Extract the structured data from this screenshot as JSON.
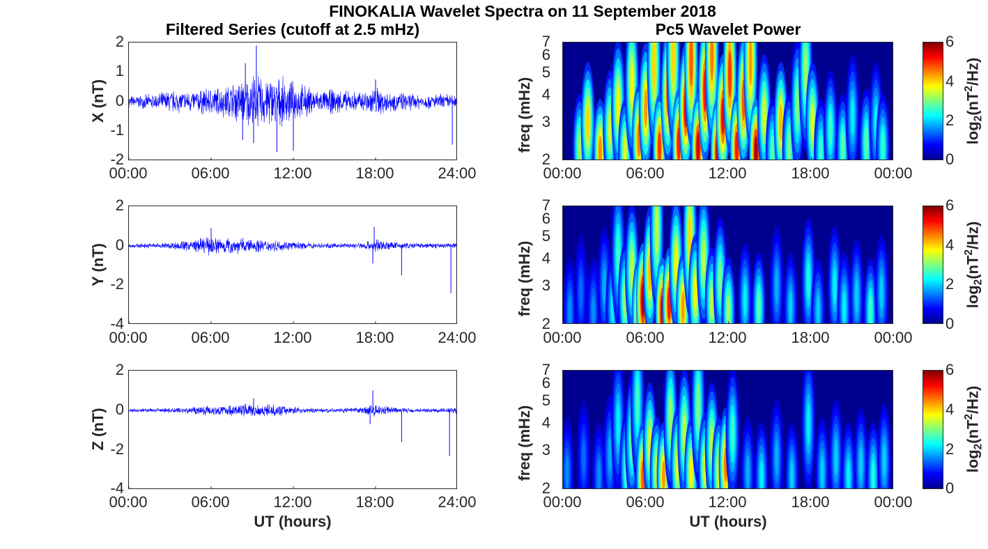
{
  "chart_data": [
    {
      "type": "line",
      "title": "Filtered Series (cutoff at 2.5 mHz)",
      "ylabel": "X (nT)",
      "xlabel": "",
      "x_ticks": [
        "00:00",
        "06:00",
        "12:00",
        "18:00",
        "24:00"
      ],
      "y_ticks": [
        "-2",
        "-1",
        "0",
        "1",
        "2"
      ],
      "ylim": [
        -2,
        2
      ],
      "xlim_hours": [
        0,
        24
      ],
      "color": "#0000ff",
      "envelope": {
        "hours": [
          0,
          1,
          2,
          3,
          4,
          5,
          6,
          7,
          8,
          9,
          10,
          11,
          12,
          13,
          14,
          15,
          16,
          17,
          18,
          19,
          20,
          21,
          22,
          23,
          24
        ],
        "amplitude_nT": [
          0.22,
          0.25,
          0.3,
          0.45,
          0.4,
          0.45,
          0.55,
          0.6,
          0.85,
          1.0,
          1.0,
          0.9,
          0.75,
          0.6,
          0.4,
          0.5,
          0.4,
          0.4,
          0.6,
          0.4,
          0.35,
          0.3,
          0.28,
          0.3,
          0.3
        ]
      },
      "spikes": [
        {
          "hour": 8.3,
          "value": -1.3
        },
        {
          "hour": 9.3,
          "value": 1.9
        },
        {
          "hour": 9.1,
          "value": -1.4
        },
        {
          "hour": 10.8,
          "value": -1.7
        },
        {
          "hour": 12.0,
          "value": -1.65
        },
        {
          "hour": 8.5,
          "value": 1.3
        },
        {
          "hour": 23.6,
          "value": -1.45
        },
        {
          "hour": 18.0,
          "value": 0.75
        }
      ]
    },
    {
      "type": "line",
      "title": "",
      "ylabel": "Y (nT)",
      "xlabel": "",
      "x_ticks": [
        "00:00",
        "06:00",
        "12:00",
        "18:00",
        "24:00"
      ],
      "y_ticks": [
        "-4",
        "-2",
        "0",
        "2"
      ],
      "ylim": [
        -4,
        2
      ],
      "xlim_hours": [
        0,
        24
      ],
      "color": "#0000ff",
      "envelope": {
        "hours": [
          0,
          1,
          2,
          3,
          4,
          5,
          6,
          7,
          8,
          9,
          10,
          11,
          12,
          13,
          14,
          15,
          16,
          17,
          18,
          19,
          20,
          21,
          22,
          23,
          24
        ],
        "amplitude_nT": [
          0.12,
          0.14,
          0.16,
          0.2,
          0.3,
          0.4,
          0.55,
          0.5,
          0.45,
          0.4,
          0.35,
          0.3,
          0.22,
          0.18,
          0.15,
          0.14,
          0.15,
          0.2,
          0.4,
          0.25,
          0.18,
          0.15,
          0.15,
          0.18,
          0.2
        ]
      },
      "spikes": [
        {
          "hour": 17.9,
          "value": 0.95
        },
        {
          "hour": 17.8,
          "value": -0.9
        },
        {
          "hour": 19.9,
          "value": -1.5
        },
        {
          "hour": 23.5,
          "value": -2.4
        },
        {
          "hour": 6.0,
          "value": 0.9
        }
      ]
    },
    {
      "type": "line",
      "title": "",
      "ylabel": "Z (nT)",
      "xlabel": "UT (hours)",
      "x_ticks": [
        "00:00",
        "06:00",
        "12:00",
        "18:00",
        "24:00"
      ],
      "y_ticks": [
        "-4",
        "-2",
        "0",
        "2"
      ],
      "ylim": [
        -4,
        2
      ],
      "xlim_hours": [
        0,
        24
      ],
      "color": "#0000ff",
      "envelope": {
        "hours": [
          0,
          1,
          2,
          3,
          4,
          5,
          6,
          7,
          8,
          9,
          10,
          11,
          12,
          13,
          14,
          15,
          16,
          17,
          18,
          19,
          20,
          21,
          22,
          23,
          24
        ],
        "amplitude_nT": [
          0.1,
          0.1,
          0.12,
          0.14,
          0.2,
          0.25,
          0.3,
          0.3,
          0.35,
          0.4,
          0.35,
          0.3,
          0.22,
          0.15,
          0.12,
          0.12,
          0.14,
          0.18,
          0.4,
          0.2,
          0.15,
          0.12,
          0.12,
          0.15,
          0.2
        ]
      },
      "spikes": [
        {
          "hour": 17.8,
          "value": 1.0
        },
        {
          "hour": 17.6,
          "value": -0.7
        },
        {
          "hour": 19.9,
          "value": -1.6
        },
        {
          "hour": 23.4,
          "value": -2.3
        },
        {
          "hour": 9.1,
          "value": 0.6
        }
      ]
    },
    {
      "type": "heatmap",
      "title": "Pc5 Wavelet Power",
      "ylabel": "freq (mHz)",
      "xlabel": "",
      "x_ticks": [
        "00:00",
        "06:00",
        "12:00",
        "18:00",
        "00:00"
      ],
      "y_ticks": [
        "2",
        "3",
        "4",
        "5",
        "6",
        "7"
      ],
      "ylim": [
        2,
        7
      ],
      "y_scale": "log",
      "xlim_hours": [
        0,
        24
      ],
      "colormap": "jet",
      "colorbar": {
        "label": "log2(nT^2/Hz)",
        "ticks": [
          "0",
          "2",
          "4",
          "6"
        ],
        "range": [
          0,
          6
        ]
      },
      "bursts": [
        [
          1.2,
          2.3,
          3.2
        ],
        [
          1.8,
          3.0,
          4.0
        ],
        [
          2.7,
          2.2,
          4.5
        ],
        [
          3.4,
          2.8,
          3.5
        ],
        [
          4.0,
          3.6,
          3.8
        ],
        [
          4.5,
          2.2,
          3.6
        ],
        [
          5.0,
          4.5,
          3.8
        ],
        [
          5.5,
          2.5,
          4.6
        ],
        [
          6.0,
          3.5,
          4.4
        ],
        [
          6.6,
          5.5,
          4.0
        ],
        [
          7.0,
          2.3,
          5.0
        ],
        [
          7.6,
          4.0,
          4.6
        ],
        [
          8.0,
          6.0,
          4.0
        ],
        [
          8.4,
          2.4,
          5.2
        ],
        [
          8.9,
          3.5,
          5.4
        ],
        [
          9.3,
          5.8,
          4.8
        ],
        [
          9.8,
          2.3,
          5.6
        ],
        [
          10.3,
          4.2,
          5.2
        ],
        [
          10.8,
          6.2,
          4.6
        ],
        [
          11.2,
          2.2,
          5.6
        ],
        [
          11.6,
          3.2,
          5.4
        ],
        [
          12.1,
          5.0,
          5.0
        ],
        [
          12.6,
          2.3,
          5.2
        ],
        [
          13.1,
          3.8,
          4.8
        ],
        [
          13.6,
          5.8,
          4.4
        ],
        [
          14.0,
          2.2,
          5.8
        ],
        [
          14.6,
          3.2,
          3.6
        ],
        [
          15.2,
          2.2,
          2.8
        ],
        [
          15.8,
          3.0,
          4.2
        ],
        [
          16.4,
          2.3,
          3.0
        ],
        [
          17.0,
          3.6,
          3.0
        ],
        [
          17.6,
          5.2,
          3.2
        ],
        [
          18.1,
          3.0,
          3.6
        ],
        [
          18.7,
          2.2,
          2.6
        ],
        [
          19.4,
          2.8,
          2.6
        ],
        [
          20.3,
          2.3,
          2.8
        ],
        [
          21.0,
          3.2,
          2.2
        ],
        [
          22.0,
          2.4,
          2.8
        ],
        [
          22.7,
          3.0,
          2.2
        ],
        [
          23.2,
          2.3,
          2.6
        ]
      ]
    },
    {
      "type": "heatmap",
      "title": "",
      "ylabel": "freq (mHz)",
      "xlabel": "",
      "x_ticks": [
        "00:00",
        "06:00",
        "12:00",
        "18:00",
        "00:00"
      ],
      "y_ticks": [
        "2",
        "3",
        "4",
        "5",
        "6",
        "7"
      ],
      "ylim": [
        2,
        7
      ],
      "y_scale": "log",
      "xlim_hours": [
        0,
        24
      ],
      "colormap": "jet",
      "colorbar": {
        "label": "log2(nT^2/Hz)",
        "ticks": [
          "0",
          "2",
          "4",
          "6"
        ],
        "range": [
          0,
          6
        ]
      },
      "bursts": [
        [
          0.5,
          2.3,
          1.6
        ],
        [
          1.3,
          2.8,
          1.4
        ],
        [
          2.2,
          2.3,
          1.6
        ],
        [
          3.0,
          3.0,
          1.8
        ],
        [
          3.6,
          2.4,
          2.2
        ],
        [
          4.0,
          4.2,
          2.6
        ],
        [
          4.5,
          2.6,
          3.2
        ],
        [
          5.0,
          3.6,
          3.4
        ],
        [
          5.5,
          2.3,
          4.8
        ],
        [
          5.8,
          2.6,
          5.8
        ],
        [
          6.3,
          3.5,
          4.2
        ],
        [
          6.8,
          5.5,
          3.4
        ],
        [
          7.2,
          2.3,
          5.6
        ],
        [
          7.7,
          2.5,
          5.2
        ],
        [
          8.2,
          3.8,
          3.8
        ],
        [
          8.7,
          2.4,
          4.4
        ],
        [
          9.2,
          5.0,
          4.0
        ],
        [
          9.6,
          2.8,
          3.8
        ],
        [
          10.2,
          4.0,
          3.4
        ],
        [
          10.8,
          2.5,
          3.4
        ],
        [
          11.4,
          3.2,
          3.0
        ],
        [
          12.0,
          2.3,
          3.2
        ],
        [
          13.2,
          2.6,
          2.2
        ],
        [
          14.2,
          2.4,
          2.8
        ],
        [
          15.5,
          3.0,
          1.8
        ],
        [
          16.5,
          2.4,
          2.0
        ],
        [
          17.8,
          3.2,
          2.4
        ],
        [
          18.5,
          2.3,
          2.0
        ],
        [
          19.7,
          3.0,
          2.2
        ],
        [
          20.4,
          2.4,
          2.2
        ],
        [
          21.3,
          2.7,
          2.0
        ],
        [
          22.3,
          2.3,
          2.6
        ],
        [
          23.1,
          2.8,
          2.0
        ]
      ]
    },
    {
      "type": "heatmap",
      "title": "",
      "ylabel": "freq (mHz)",
      "xlabel": "UT (hours)",
      "x_ticks": [
        "00:00",
        "06:00",
        "12:00",
        "18:00",
        "00:00"
      ],
      "y_ticks": [
        "2",
        "3",
        "4",
        "5",
        "6",
        "7"
      ],
      "ylim": [
        2,
        7
      ],
      "y_scale": "log",
      "xlim_hours": [
        0,
        24
      ],
      "colormap": "jet",
      "colorbar": {
        "label": "log2(nT^2/Hz)",
        "ticks": [
          "0",
          "2",
          "4",
          "6"
        ],
        "range": [
          0,
          6
        ]
      },
      "bursts": [
        [
          0.3,
          2.4,
          1.6
        ],
        [
          1.5,
          2.8,
          1.4
        ],
        [
          2.6,
          2.3,
          1.6
        ],
        [
          3.4,
          2.9,
          1.8
        ],
        [
          4.0,
          4.0,
          2.2
        ],
        [
          4.6,
          2.5,
          2.8
        ],
        [
          5.0,
          3.4,
          3.0
        ],
        [
          5.4,
          5.0,
          2.6
        ],
        [
          5.8,
          2.3,
          4.8
        ],
        [
          6.3,
          3.2,
          3.6
        ],
        [
          6.8,
          2.4,
          3.6
        ],
        [
          7.3,
          2.3,
          4.4
        ],
        [
          7.8,
          4.2,
          3.2
        ],
        [
          8.3,
          2.6,
          3.6
        ],
        [
          8.8,
          3.6,
          3.4
        ],
        [
          9.3,
          2.4,
          3.8
        ],
        [
          9.8,
          4.8,
          3.0
        ],
        [
          10.3,
          2.5,
          3.6
        ],
        [
          10.8,
          3.2,
          3.4
        ],
        [
          11.3,
          2.4,
          3.6
        ],
        [
          11.8,
          2.6,
          4.6
        ],
        [
          12.3,
          3.6,
          2.6
        ],
        [
          13.4,
          2.4,
          1.8
        ],
        [
          14.4,
          2.3,
          2.2
        ],
        [
          15.5,
          2.8,
          1.8
        ],
        [
          16.6,
          2.3,
          2.0
        ],
        [
          17.8,
          4.0,
          2.2
        ],
        [
          18.8,
          2.4,
          2.0
        ],
        [
          19.8,
          2.8,
          2.0
        ],
        [
          20.7,
          2.3,
          2.2
        ],
        [
          21.6,
          2.6,
          2.0
        ],
        [
          22.5,
          2.3,
          2.4
        ],
        [
          23.3,
          2.7,
          2.0
        ]
      ]
    }
  ],
  "figure": {
    "suptitle": "FINOKALIA Wavelet Spectra on 11 September 2018",
    "left_title": "Filtered Series (cutoff at 2.5 mHz)",
    "right_title": "Pc5 Wavelet Power",
    "xlabel": "UT (hours)",
    "ylabels": [
      "X (nT)",
      "Y (nT)",
      "Z (nT)",
      "freq (mHz)"
    ],
    "x_ticks_left": [
      "00:00",
      "06:00",
      "12:00",
      "18:00",
      "24:00"
    ],
    "x_ticks_right": [
      "00:00",
      "06:00",
      "12:00",
      "18:00",
      "00:00"
    ],
    "y_ticks_x": [
      "-2",
      "-1",
      "0",
      "1",
      "2"
    ],
    "y_ticks_yz": [
      "-4",
      "-2",
      "0",
      "2"
    ],
    "y_ticks_freq": [
      "2",
      "3",
      "4",
      "5",
      "6",
      "7"
    ],
    "colorbar_ticks": [
      "0",
      "2",
      "4",
      "6"
    ],
    "colorbar_label_base": "log",
    "colorbar_label_sub": "2",
    "colorbar_label_mid": "(nT",
    "colorbar_label_sup": "2",
    "colorbar_label_end": "/Hz)"
  }
}
